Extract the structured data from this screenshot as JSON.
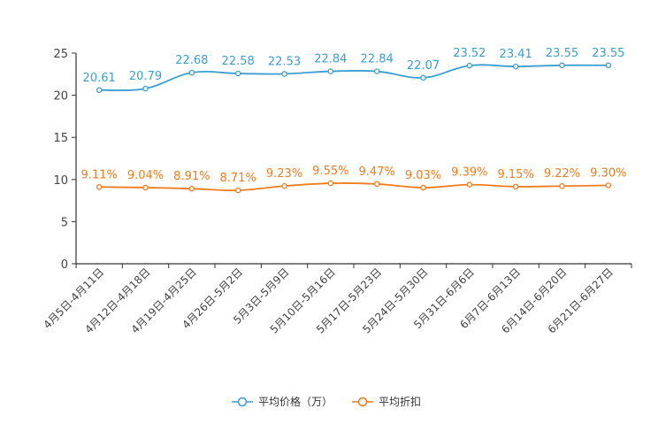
{
  "chart_data": {
    "type": "line",
    "title": "",
    "xlabel": "",
    "ylabel": "",
    "ylim": [
      0,
      25
    ],
    "yticks": [
      0,
      5,
      10,
      15,
      20,
      25
    ],
    "grid": false,
    "legend_position": "bottom-center",
    "categories": [
      "4月5日-4月11日",
      "4月12日-4月18日",
      "4月19日-4月25日",
      "4月26日-5月2日",
      "5月3日-5月9日",
      "5月10日-5月16日",
      "5月17日-5月23日",
      "5月24日-5月30日",
      "5月31日-6月6日",
      "6月7日-6月13日",
      "6月14日-6月20日",
      "6月21日-6月27日"
    ],
    "series": [
      {
        "name": "平均价格（万）",
        "color": "#3a9fd0",
        "values": [
          20.61,
          20.79,
          22.68,
          22.58,
          22.53,
          22.84,
          22.84,
          22.07,
          23.52,
          23.41,
          23.55,
          23.55
        ],
        "labels": [
          "20.61",
          "20.79",
          "22.68",
          "22.58",
          "22.53",
          "22.84",
          "22.84",
          "22.07",
          "23.52",
          "23.41",
          "23.55",
          "23.55"
        ]
      },
      {
        "name": "平均折扣",
        "color": "#f07c1c",
        "values": [
          9.11,
          9.04,
          8.91,
          8.71,
          9.23,
          9.55,
          9.47,
          9.03,
          9.39,
          9.15,
          9.22,
          9.3
        ],
        "labels": [
          "9.11%",
          "9.04%",
          "8.91%",
          "8.71%",
          "9.23%",
          "9.55%",
          "9.47%",
          "9.03%",
          "9.39%",
          "9.15%",
          "9.22%",
          "9.30%"
        ]
      }
    ]
  }
}
